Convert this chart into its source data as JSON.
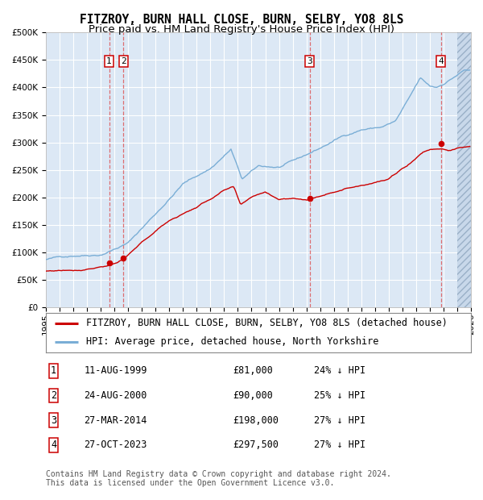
{
  "title": "FITZROY, BURN HALL CLOSE, BURN, SELBY, YO8 8LS",
  "subtitle": "Price paid vs. HM Land Registry's House Price Index (HPI)",
  "ylim": [
    0,
    500000
  ],
  "yticks": [
    0,
    50000,
    100000,
    150000,
    200000,
    250000,
    300000,
    350000,
    400000,
    450000,
    500000
  ],
  "xlim_start": 1995.0,
  "xlim_end": 2026.0,
  "hatch_start": 2025.0,
  "sales": [
    {
      "date": 1999.61,
      "price": 81000,
      "label": "1"
    },
    {
      "date": 2000.65,
      "price": 90000,
      "label": "2"
    },
    {
      "date": 2014.24,
      "price": 198000,
      "label": "3"
    },
    {
      "date": 2023.82,
      "price": 297500,
      "label": "4"
    }
  ],
  "red_line_color": "#cc0000",
  "blue_line_color": "#7aaed6",
  "bg_color": "#dce8f5",
  "grid_color": "#ffffff",
  "legend_entries": [
    "FITZROY, BURN HALL CLOSE, BURN, SELBY, YO8 8LS (detached house)",
    "HPI: Average price, detached house, North Yorkshire"
  ],
  "table_rows": [
    [
      "1",
      "11-AUG-1999",
      "£81,000",
      "24% ↓ HPI"
    ],
    [
      "2",
      "24-AUG-2000",
      "£90,000",
      "25% ↓ HPI"
    ],
    [
      "3",
      "27-MAR-2014",
      "£198,000",
      "27% ↓ HPI"
    ],
    [
      "4",
      "27-OCT-2023",
      "£297,500",
      "27% ↓ HPI"
    ]
  ],
  "footnote": "Contains HM Land Registry data © Crown copyright and database right 2024.\nThis data is licensed under the Open Government Licence v3.0.",
  "title_fontsize": 10.5,
  "subtitle_fontsize": 9.5,
  "tick_fontsize": 7.5,
  "legend_fontsize": 8.5,
  "table_fontsize": 8.5,
  "footnote_fontsize": 7.0
}
